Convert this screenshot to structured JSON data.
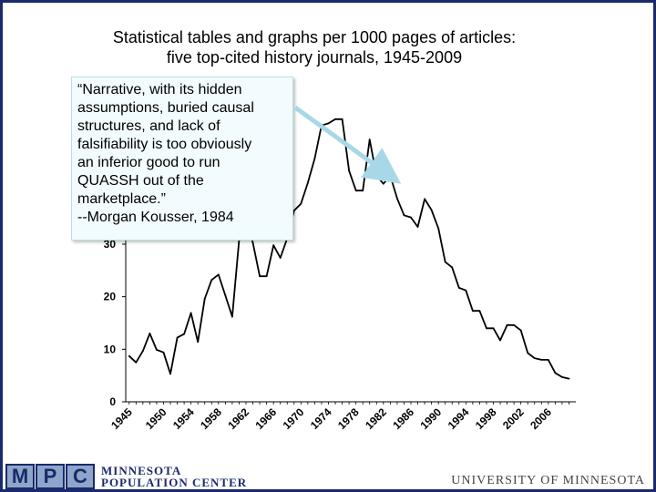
{
  "slide": {
    "title_line1": "Statistical tables and graphs per 1000 pages of articles:",
    "title_line2": "five top-cited history journals, 1945-2009"
  },
  "quote": {
    "lines": [
      "“Narrative, with its hidden",
      "assumptions, buried causal",
      "structures, and lack of",
      "falsifiability is too obviously",
      "an inferior good to run",
      "QUASSH out of the",
      "marketplace.”",
      "--Morgan Kousser, 1984"
    ]
  },
  "footer": {
    "logo_letters": [
      "M",
      "P",
      "C"
    ],
    "org_line1": "MINNESOTA",
    "org_line2": "POPULATION CENTER",
    "university": "UNIVERSITY OF MINNESOTA"
  },
  "colors": {
    "frame": "#1a2a6c",
    "line": "#000000",
    "arrow": "#a8d8e8",
    "quote_bg": "#f2fbfd"
  },
  "chart_data": {
    "type": "line",
    "title": "Statistical tables and graphs per 1000 pages of articles: five top-cited history journals, 1945-2009",
    "xlabel": "",
    "ylabel": "",
    "ylim": [
      0,
      60
    ],
    "xlim": [
      1944.5,
      2010
    ],
    "y_ticks": [
      0,
      10,
      20,
      30
    ],
    "x_ticks": [
      1945,
      1950,
      1954,
      1958,
      1962,
      1966,
      1970,
      1974,
      1978,
      1982,
      1986,
      1990,
      1994,
      1998,
      2002,
      2006
    ],
    "grid": false,
    "series": [
      {
        "x": [
          1945,
          1946,
          1947,
          1948,
          1949,
          1950,
          1951,
          1952,
          1953,
          1954,
          1955,
          1956,
          1957,
          1958,
          1959,
          1960,
          1961,
          1962,
          1963,
          1964,
          1965,
          1966,
          1967,
          1968,
          1969,
          1970,
          1971,
          1972,
          1973,
          1974,
          1975,
          1976,
          1977,
          1978,
          1979,
          1980,
          1981,
          1982,
          1983,
          1984,
          1985,
          1986,
          1987,
          1988,
          1989,
          1990,
          1991,
          1992,
          1993,
          1994,
          1995,
          1996,
          1997,
          1998,
          1999,
          2000,
          2001,
          2002,
          2003,
          2004,
          2005,
          2006,
          2007,
          2008,
          2009
        ],
        "values": [
          8.7,
          7.5,
          9.7,
          13.0,
          9.9,
          9.4,
          5.3,
          12.2,
          12.9,
          16.9,
          11.4,
          19.6,
          23.2,
          24.2,
          20.2,
          16.2,
          30.7,
          34.3,
          30.3,
          23.9,
          23.9,
          29.8,
          27.4,
          31.1,
          36.4,
          37.7,
          41.7,
          46.3,
          52.6,
          53.0,
          53.8,
          53.8,
          44.0,
          40.2,
          40.2,
          49.9,
          43.0,
          41.5,
          43.0,
          38.7,
          35.5,
          35.1,
          33.3,
          38.6,
          36.5,
          33.0,
          26.6,
          25.6,
          21.7,
          21.2,
          17.3,
          17.3,
          14.0,
          14.0,
          11.7,
          14.6,
          14.6,
          13.6,
          9.3,
          8.3,
          8.0,
          8.0,
          5.5,
          4.7,
          4.4
        ]
      }
    ]
  }
}
